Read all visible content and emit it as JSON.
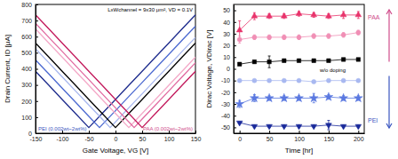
{
  "chart_data": [
    {
      "type": "line",
      "xlabel": "Gate Voltage, VG [V]",
      "ylabel": "Drain Current, ID [μA]",
      "annotations": [
        "LxWchannel = 9x30 μm², VD = 0.1V",
        "PEI (0.002wt~2wt%)",
        "PAA (0.002wt~2wt%)"
      ],
      "xlim": [
        -150,
        150
      ],
      "xticks": [
        -150,
        -100,
        -50,
        0,
        50,
        100,
        150
      ],
      "ylim": [
        0,
        800
      ],
      "yticks": [
        0,
        100,
        200,
        300,
        400,
        500,
        600,
        700,
        800
      ],
      "series": [
        {
          "color": "#1c2a8c",
          "x": [
            -150,
            -125,
            -100,
            -75,
            -50,
            -25,
            0,
            25,
            50,
            75,
            100,
            125,
            150
          ],
          "values": [
            385,
            298,
            210,
            123,
            35,
            123,
            210,
            298,
            385,
            473,
            560,
            648,
            735
          ]
        },
        {
          "color": "#4a68d0",
          "x": [
            -150,
            -125,
            -100,
            -75,
            -50,
            -30,
            -25,
            0,
            25,
            50,
            75,
            100,
            125,
            150
          ],
          "values": [
            455,
            368,
            280,
            193,
            105,
            35,
            53,
            140,
            228,
            315,
            403,
            490,
            578,
            665
          ]
        },
        {
          "color": "#a6b6ee",
          "x": [
            -150,
            -125,
            -100,
            -75,
            -50,
            -25,
            -10,
            0,
            25,
            50,
            75,
            100,
            125,
            150
          ],
          "values": [
            525,
            438,
            350,
            263,
            175,
            88,
            35,
            70,
            158,
            245,
            333,
            420,
            508,
            595
          ]
        },
        {
          "color": "#000000",
          "x": [
            -150,
            -125,
            -100,
            -75,
            -50,
            -25,
            0,
            25,
            50,
            75,
            100,
            125,
            150
          ],
          "values": [
            560,
            473,
            385,
            298,
            210,
            123,
            35,
            123,
            210,
            298,
            385,
            473,
            560
          ]
        },
        {
          "color": "#f4a9c8",
          "x": [
            -150,
            -125,
            -100,
            -75,
            -50,
            -25,
            0,
            25,
            50,
            75,
            100,
            125,
            150
          ],
          "values": [
            648,
            560,
            473,
            385,
            298,
            210,
            123,
            35,
            123,
            210,
            298,
            385,
            473
          ]
        },
        {
          "color": "#e06aa0",
          "x": [
            -150,
            -125,
            -100,
            -75,
            -50,
            -25,
            0,
            25,
            35,
            50,
            75,
            100,
            125,
            150
          ],
          "values": [
            683,
            595,
            508,
            420,
            333,
            245,
            158,
            70,
            35,
            88,
            175,
            263,
            350,
            438
          ]
        },
        {
          "color": "#c2185b",
          "x": [
            -150,
            -125,
            -100,
            -75,
            -50,
            -25,
            0,
            25,
            50,
            75,
            100,
            125,
            150
          ],
          "values": [
            735,
            648,
            560,
            473,
            385,
            298,
            210,
            123,
            35,
            123,
            210,
            298,
            385
          ]
        }
      ]
    },
    {
      "type": "line",
      "xlabel": "Time [hr]",
      "ylabel": "Dirac Voltage, VDirac [V]",
      "annotations": [
        "w/o doping",
        "PAA",
        "PEI"
      ],
      "x": [
        0,
        25,
        50,
        75,
        100,
        125,
        150,
        175,
        200
      ],
      "xlim": [
        -10,
        210
      ],
      "xticks": [
        0,
        50,
        100,
        150,
        200
      ],
      "ylim": [
        -55,
        55
      ],
      "yticks": [
        -50,
        -40,
        -30,
        -20,
        -10,
        0,
        10,
        20,
        30,
        40,
        50
      ],
      "series": [
        {
          "color": "#e8336b",
          "marker": "triangle-up",
          "values": [
            33,
            45,
            45,
            45,
            47,
            46,
            45,
            46,
            46
          ],
          "errors": [
            8,
            3,
            2,
            2,
            2,
            2,
            2,
            3,
            3
          ]
        },
        {
          "color": "#f08fb5",
          "marker": "circle",
          "values": [
            25,
            27,
            27,
            27,
            27,
            28,
            28,
            29,
            31
          ],
          "errors": [
            3,
            2,
            2,
            2,
            2,
            2,
            2,
            2,
            2
          ]
        },
        {
          "color": "#000000",
          "marker": "square",
          "values": [
            4,
            6,
            6,
            7,
            7,
            7,
            7,
            8,
            8
          ],
          "errors": [
            1,
            1,
            5,
            1,
            1,
            1,
            1,
            1,
            1
          ]
        },
        {
          "color": "#a8b8f0",
          "marker": "circle",
          "values": [
            -10,
            -10,
            -10,
            -10,
            -10,
            -11,
            -10,
            -10,
            -10
          ],
          "errors": [
            1,
            1,
            1,
            1,
            1,
            1,
            1,
            1,
            1
          ]
        },
        {
          "color": "#5a78e0",
          "marker": "star",
          "values": [
            -30,
            -25,
            -25,
            -25,
            -25,
            -25,
            -24,
            -25,
            -25
          ],
          "errors": [
            3,
            3,
            2,
            2,
            2,
            4,
            2,
            2,
            2
          ]
        },
        {
          "color": "#1a2a9a",
          "marker": "triangle-down",
          "values": [
            -46,
            -49,
            -49,
            -49,
            -49,
            -49,
            -48,
            -49,
            -49
          ],
          "errors": [
            1,
            1,
            1,
            1,
            1,
            1,
            4,
            1,
            1
          ]
        }
      ]
    }
  ]
}
